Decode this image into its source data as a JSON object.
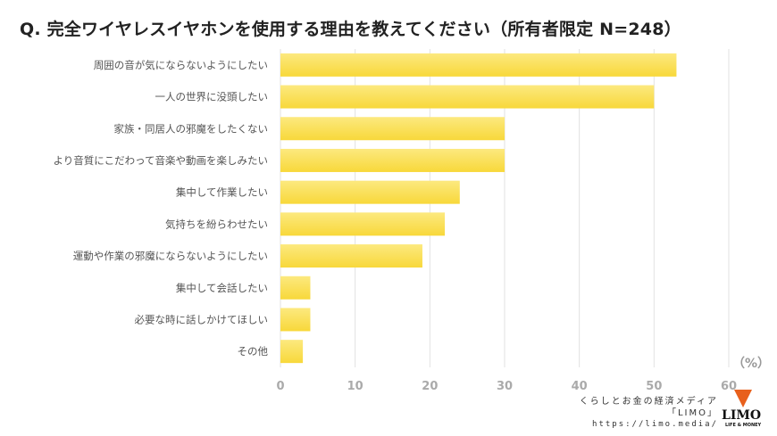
{
  "title": "Q. 完全ワイヤレスイヤホンを使用する理由を教えてください（所有者限定 N=248）",
  "chart_data": {
    "type": "bar",
    "orientation": "horizontal",
    "title": "Q. 完全ワイヤレスイヤホンを使用する理由を教えてください（所有者限定 N=248）",
    "categories": [
      "周囲の音が気にならないようにしたい",
      "一人の世界に没頭したい",
      "家族・同居人の邪魔をしたくない",
      "より音質にこだわって音楽や動画を楽しみたい",
      "集中して作業したい",
      "気持ちを紛らわせたい",
      "運動や作業の邪魔にならないようにしたい",
      "集中して会話したい",
      "必要な時に話しかけてほしい",
      "その他"
    ],
    "values": [
      53,
      50,
      30,
      30,
      24,
      22,
      19,
      4,
      4,
      3
    ],
    "xlim": [
      0,
      60
    ],
    "ticks": [
      "0",
      "10",
      "20",
      "30",
      "40",
      "50",
      "60"
    ],
    "unit": "（%）",
    "grid": true,
    "bar_color": "#f9dc4a"
  },
  "credit": {
    "line1": "くらしとお金の経済メディア",
    "line2": "「LIMO」",
    "url": "https://limo.media/"
  },
  "logo": {
    "text": "LIMO",
    "sub": "LIFE & MONEY"
  }
}
